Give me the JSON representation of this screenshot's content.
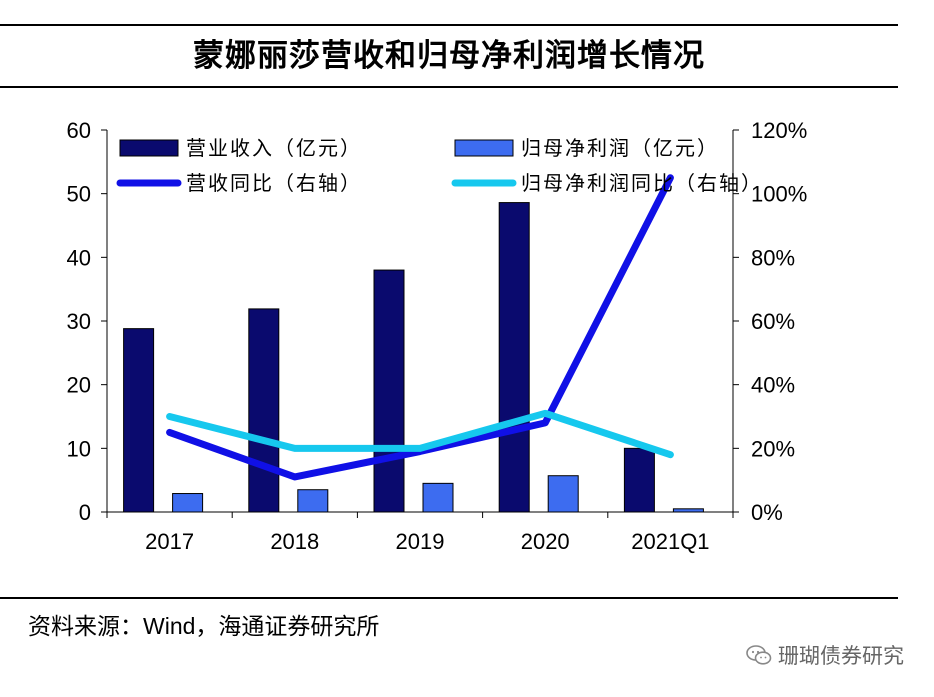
{
  "title": "蒙娜丽莎营收和归母净利润增长情况",
  "source": "资料来源：Wind，海通证券研究所",
  "watermark": "珊瑚债券研究",
  "colors": {
    "revenue": "#0a0a6e",
    "net_profit": "#3d6cf0",
    "revenue_yoy": "#1010e6",
    "net_profit_yoy": "#16c8ee",
    "axis": "#000000"
  },
  "chart_data": {
    "type": "bar",
    "title": "蒙娜丽莎营收和归母净利润增长情况",
    "categories": [
      "2017",
      "2018",
      "2019",
      "2020",
      "2021Q1"
    ],
    "left_axis": {
      "ylim": [
        0,
        60
      ],
      "ticks": [
        0,
        10,
        20,
        30,
        40,
        50,
        60
      ]
    },
    "right_axis": {
      "ylim": [
        0,
        120
      ],
      "ticks": [
        "0%",
        "20%",
        "40%",
        "60%",
        "80%",
        "100%",
        "120%"
      ],
      "tick_values": [
        0,
        20,
        40,
        60,
        80,
        100,
        120
      ]
    },
    "legend_position": "top",
    "series": [
      {
        "name": "营业收入（亿元）",
        "type": "bar",
        "axis": "left",
        "values": [
          28.8,
          31.9,
          38.0,
          48.6,
          10.0
        ]
      },
      {
        "name": "归母净利润（亿元）",
        "type": "bar",
        "axis": "left",
        "values": [
          2.9,
          3.5,
          4.5,
          5.7,
          0.5
        ]
      },
      {
        "name": "营收同比（右轴）",
        "type": "line",
        "axis": "right",
        "values": [
          25,
          11,
          19,
          28,
          105
        ]
      },
      {
        "name": "归母净利润同比（右轴）",
        "type": "line",
        "axis": "right",
        "values": [
          30,
          20,
          20,
          31,
          18
        ]
      }
    ]
  }
}
